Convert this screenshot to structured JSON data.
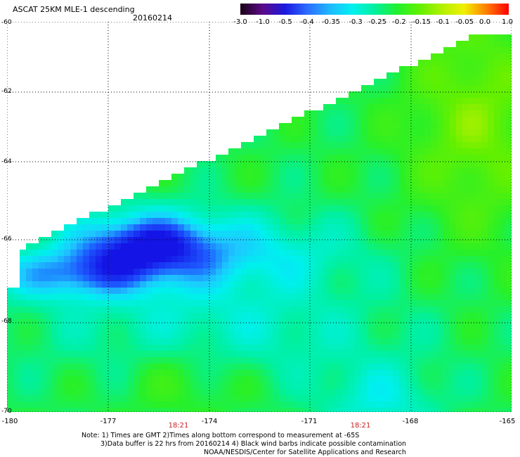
{
  "header": {
    "title": "ASCAT 25KM MLE-1 descending",
    "date": "20160214"
  },
  "colorbar": {
    "labels": [
      "-3.0",
      "-1.0",
      "-0.5",
      "-0.4",
      "-0.35",
      "-0.3",
      "-0.25",
      "-0.2",
      "-0.15",
      "-0.1",
      "-0.05",
      "0.0",
      "1.0"
    ],
    "colors": [
      "#1a0015",
      "#5c0a8a",
      "#1c18e0",
      "#2c6cff",
      "#20b8ff",
      "#00f0f0",
      "#00f0a0",
      "#20f030",
      "#60f000",
      "#b0f000",
      "#f0f000",
      "#ff7e00",
      "#ff0000"
    ]
  },
  "map": {
    "lat_labels": [
      "-60",
      "-62",
      "-64",
      "-66",
      "-68",
      "-70"
    ],
    "lon_labels": [
      "-180",
      "-177",
      "-174",
      "-171",
      "-168",
      "-165"
    ],
    "time_labels": [
      "18:21",
      "18:21"
    ]
  },
  "notes": {
    "line1": "Note: 1) Times are GMT 2)Times along bottom correspond to measurement at -65S",
    "line2": "3)Data buffer is 22 hrs from 20160214 4) Black wind barbs indicate possible contamination",
    "line3": "NOAA/NESDIS/Center for Satellite Applications and Research"
  }
}
